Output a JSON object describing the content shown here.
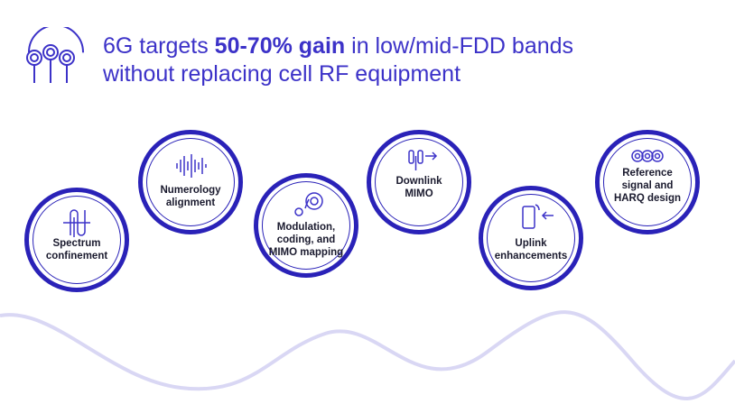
{
  "header": {
    "title_prefix": "6G targets ",
    "title_bold": "50-70% gain",
    "title_suffix": " in low/mid-FDD bands",
    "title_line2": "without replacing cell RF equipment",
    "logo_icon": "antenna-array-icon"
  },
  "features": [
    {
      "label": "Spectrum\nconfinement",
      "icon": "coil-icon"
    },
    {
      "label": "Numerology\nalignment",
      "icon": "waveform-icon"
    },
    {
      "label": "Modulation,\ncoding, and\nMIMO mapping",
      "icon": "spiral-mapping-icon"
    },
    {
      "label": "Downlink\nMIMO",
      "icon": "antenna-downlink-icon"
    },
    {
      "label": "Uplink\nenhancements",
      "icon": "phone-uplink-icon"
    },
    {
      "label": "Reference\nsignal and\nHARQ design",
      "icon": "linked-rings-icon"
    }
  ],
  "colors": {
    "accent": "#3c32c8",
    "circle_border": "#2a22b8",
    "wave": "#d9d7f4",
    "text": "#1a1a2e"
  }
}
